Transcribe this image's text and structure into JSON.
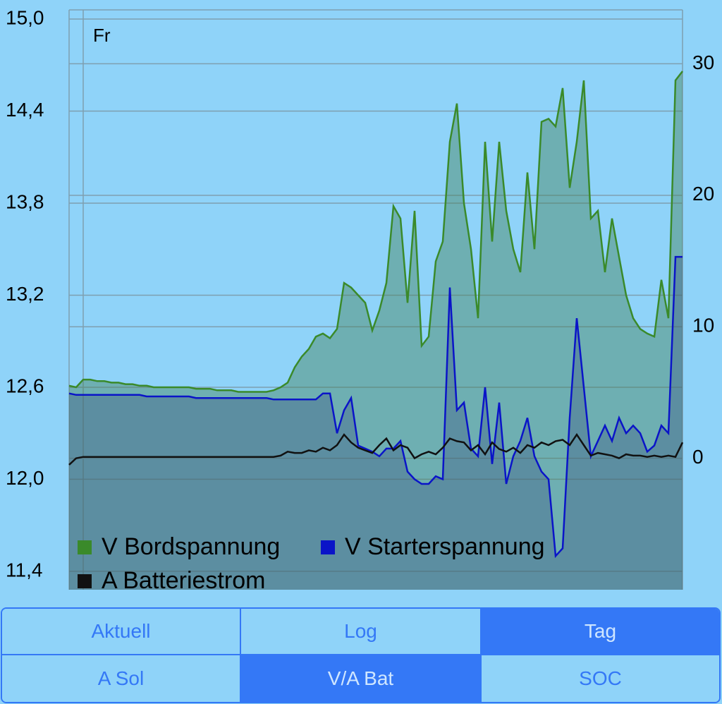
{
  "chart_data": {
    "type": "area",
    "annotation": "Fr",
    "ylim": [
      11.28,
      15.06
    ],
    "yticks": [
      {
        "value": 15.0,
        "label": "15,0"
      },
      {
        "value": 14.4,
        "label": "14,4"
      },
      {
        "value": 13.8,
        "label": "13,8"
      },
      {
        "value": 13.2,
        "label": "13,2"
      },
      {
        "value": 12.6,
        "label": "12,6"
      },
      {
        "value": 12.0,
        "label": "12,0"
      },
      {
        "value": 11.4,
        "label": "11,4"
      }
    ],
    "y2lim": [
      -10,
      34.1
    ],
    "y2ticks": [
      0,
      10,
      20,
      30
    ],
    "grid": true,
    "legend": "bottom-left",
    "series": [
      {
        "name": "V Bordspannung",
        "color": "#3a8a2a",
        "fill": "rgba(70,130,90,0.45)",
        "values": [
          12.61,
          12.6,
          12.65,
          12.65,
          12.64,
          12.64,
          12.63,
          12.63,
          12.62,
          12.62,
          12.61,
          12.61,
          12.6,
          12.6,
          12.6,
          12.6,
          12.6,
          12.6,
          12.59,
          12.59,
          12.59,
          12.58,
          12.58,
          12.58,
          12.57,
          12.57,
          12.57,
          12.57,
          12.57,
          12.58,
          12.6,
          12.63,
          12.73,
          12.8,
          12.85,
          12.93,
          12.95,
          12.92,
          12.98,
          13.28,
          13.25,
          13.2,
          13.15,
          12.97,
          13.1,
          13.28,
          13.78,
          13.7,
          13.15,
          13.75,
          12.87,
          12.93,
          13.42,
          13.55,
          14.2,
          14.45,
          13.8,
          13.5,
          13.05,
          14.2,
          13.55,
          14.2,
          13.75,
          13.5,
          13.35,
          14.0,
          13.5,
          14.33,
          14.35,
          14.3,
          14.55,
          13.9,
          14.2,
          14.6,
          13.7,
          13.75,
          13.35,
          13.7,
          13.45,
          13.2,
          13.05,
          12.98,
          12.95,
          12.93,
          13.3,
          13.05,
          14.6,
          14.66
        ]
      },
      {
        "name": "V Starterspannung",
        "color": "#0a14c8",
        "fill": "rgba(60,80,130,0.35)",
        "values": [
          12.56,
          12.55,
          12.55,
          12.55,
          12.55,
          12.55,
          12.55,
          12.55,
          12.55,
          12.55,
          12.55,
          12.54,
          12.54,
          12.54,
          12.54,
          12.54,
          12.54,
          12.54,
          12.53,
          12.53,
          12.53,
          12.53,
          12.53,
          12.53,
          12.53,
          12.53,
          12.53,
          12.53,
          12.53,
          12.52,
          12.52,
          12.52,
          12.52,
          12.52,
          12.52,
          12.52,
          12.56,
          12.56,
          12.3,
          12.45,
          12.53,
          12.22,
          12.2,
          12.18,
          12.15,
          12.2,
          12.2,
          12.25,
          12.05,
          12.0,
          11.97,
          11.97,
          12.02,
          12.0,
          13.25,
          12.45,
          12.5,
          12.2,
          12.15,
          12.6,
          12.1,
          12.5,
          11.97,
          12.15,
          12.25,
          12.4,
          12.15,
          12.05,
          12.0,
          11.5,
          11.55,
          12.4,
          13.05,
          12.6,
          12.15,
          12.25,
          12.35,
          12.25,
          12.4,
          12.3,
          12.35,
          12.3,
          12.18,
          12.22,
          12.35,
          12.3,
          13.45,
          13.45
        ]
      },
      {
        "name": "A Batteriestrom",
        "color": "#111111",
        "axis": "y2",
        "values": [
          -0.5,
          0,
          0.1,
          0.1,
          0.1,
          0.1,
          0.1,
          0.1,
          0.1,
          0.1,
          0.1,
          0.1,
          0.1,
          0.1,
          0.1,
          0.1,
          0.1,
          0.1,
          0.1,
          0.1,
          0.1,
          0.1,
          0.1,
          0.1,
          0.1,
          0.1,
          0.1,
          0.1,
          0.1,
          0.1,
          0.2,
          0.5,
          0.4,
          0.4,
          0.6,
          0.5,
          0.8,
          0.6,
          1.0,
          1.8,
          1.2,
          0.8,
          0.6,
          0.4,
          1.0,
          1.5,
          0.6,
          1.0,
          0.8,
          0,
          0.3,
          0.5,
          0.3,
          0.8,
          1.5,
          1.3,
          1.2,
          0.6,
          1.0,
          0.3,
          1.2,
          0.7,
          0.5,
          0.8,
          0.4,
          1.0,
          0.8,
          1.2,
          1.0,
          1.3,
          1.4,
          1.0,
          1.8,
          1.0,
          0.2,
          0.4,
          0.3,
          0.2,
          0,
          0.3,
          0.2,
          0.2,
          0.1,
          0.2,
          0.1,
          0.2,
          0.1,
          1.2
        ]
      }
    ]
  },
  "tabs": [
    [
      "Aktuell",
      "Log",
      "Tag"
    ],
    [
      "A Sol",
      "V/A Bat",
      "SOC"
    ]
  ]
}
